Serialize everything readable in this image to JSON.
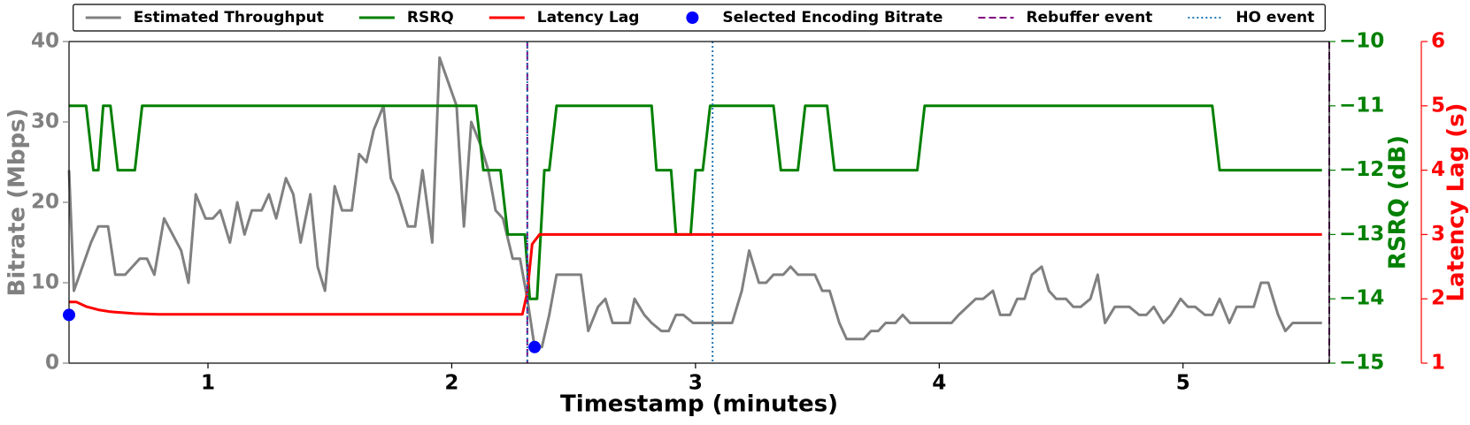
{
  "chart_data": {
    "type": "line",
    "xlabel": "Timestamp (minutes)",
    "ylabel": "Bitrate (Mbps)",
    "y2label": "RSRQ (dB)",
    "y3label": "Latency Lag (s)",
    "xlim": [
      0.43,
      5.6
    ],
    "xticks": [
      1,
      2,
      3,
      4,
      5
    ],
    "ylim": [
      0,
      40
    ],
    "yticks": [
      0,
      10,
      20,
      30,
      40
    ],
    "y2lim": [
      -15,
      -10
    ],
    "y2ticks": [
      {
        "value": -15,
        "label": "−15"
      },
      {
        "value": -14,
        "label": "−14"
      },
      {
        "value": -13,
        "label": "−13"
      },
      {
        "value": -12,
        "label": "−12"
      },
      {
        "value": -11,
        "label": "−11"
      },
      {
        "value": -10,
        "label": "−10"
      }
    ],
    "y3lim": [
      1,
      6
    ],
    "y3ticks": [
      1,
      2,
      3,
      4,
      5,
      6
    ],
    "ycolor": "#808080",
    "y2color": "#008000",
    "y3color": "#ff0000",
    "legend": "top",
    "series": [
      {
        "name": "Estimated Throughput",
        "color": "#808080",
        "style": "line",
        "axis": "y",
        "x": [
          0.43,
          0.45,
          0.52,
          0.55,
          0.59,
          0.62,
          0.66,
          0.72,
          0.75,
          0.78,
          0.82,
          0.89,
          0.92,
          0.95,
          0.99,
          1.02,
          1.05,
          1.09,
          1.12,
          1.15,
          1.18,
          1.22,
          1.25,
          1.28,
          1.32,
          1.35,
          1.38,
          1.42,
          1.45,
          1.48,
          1.52,
          1.55,
          1.59,
          1.62,
          1.65,
          1.68,
          1.72,
          1.75,
          1.78,
          1.82,
          1.85,
          1.88,
          1.92,
          1.95,
          2.02,
          2.05,
          2.08,
          2.12,
          2.15,
          2.18,
          2.21,
          2.25,
          2.28,
          2.31,
          2.34,
          2.37,
          2.4,
          2.43,
          2.53,
          2.56,
          2.6,
          2.63,
          2.66,
          2.73,
          2.75,
          2.79,
          2.82,
          2.86,
          2.89,
          2.92,
          2.95,
          2.99,
          3.15,
          3.19,
          3.22,
          3.26,
          3.29,
          3.32,
          3.36,
          3.39,
          3.42,
          3.49,
          3.52,
          3.55,
          3.59,
          3.62,
          3.69,
          3.72,
          3.75,
          3.78,
          3.82,
          3.85,
          3.88,
          4.05,
          4.08,
          4.15,
          4.18,
          4.22,
          4.25,
          4.29,
          4.32,
          4.35,
          4.38,
          4.42,
          4.45,
          4.48,
          4.52,
          4.55,
          4.58,
          4.62,
          4.65,
          4.68,
          4.72,
          4.78,
          4.82,
          4.85,
          4.88,
          4.92,
          4.95,
          4.99,
          5.02,
          5.05,
          5.09,
          5.12,
          5.15,
          5.19,
          5.22,
          5.29,
          5.32,
          5.35,
          5.39,
          5.42,
          5.45,
          5.52,
          5.57
        ],
        "values": [
          24,
          9,
          15,
          17,
          17,
          11,
          11,
          13,
          13,
          11,
          18,
          14,
          10,
          21,
          18,
          18,
          19,
          15,
          20,
          16,
          19,
          19,
          21,
          18,
          23,
          21,
          15,
          21,
          12,
          9,
          22,
          19,
          19,
          26,
          25,
          29,
          32,
          23,
          21,
          17,
          17,
          24,
          15,
          38,
          32,
          17,
          30,
          27,
          24,
          19,
          18,
          13,
          13,
          8,
          2,
          2,
          6,
          11,
          11,
          4,
          7,
          8,
          5,
          5,
          8,
          6,
          5,
          4,
          4,
          6,
          6,
          5,
          5,
          9,
          14,
          10,
          10,
          11,
          11,
          12,
          11,
          11,
          9,
          9,
          5,
          3,
          3,
          4,
          4,
          5,
          5,
          6,
          5,
          5,
          6,
          8,
          8,
          9,
          6,
          6,
          8,
          8,
          11,
          12,
          9,
          8,
          8,
          7,
          7,
          8,
          11,
          5,
          7,
          7,
          6,
          6,
          7,
          5,
          6,
          8,
          7,
          7,
          6,
          6,
          8,
          5,
          7,
          7,
          10,
          10,
          6,
          4,
          5,
          5,
          5
        ]
      },
      {
        "name": "RSRQ",
        "color": "#008000",
        "style": "line",
        "axis": "y2",
        "x": [
          0.43,
          0.5,
          0.53,
          0.55,
          0.57,
          0.6,
          0.63,
          0.7,
          0.73,
          2.1,
          2.13,
          2.2,
          2.23,
          2.3,
          2.32,
          2.35,
          2.38,
          2.4,
          2.43,
          2.82,
          2.84,
          2.9,
          2.92,
          2.98,
          3.0,
          3.03,
          3.06,
          3.32,
          3.35,
          3.42,
          3.45,
          3.54,
          3.57,
          3.91,
          3.94,
          5.12,
          5.15,
          5.57
        ],
        "values": [
          -11,
          -11,
          -12,
          -12,
          -11,
          -11,
          -12,
          -12,
          -11,
          -11,
          -12,
          -12,
          -13,
          -13,
          -14,
          -14,
          -12,
          -12,
          -11,
          -11,
          -12,
          -12,
          -13,
          -13,
          -12,
          -12,
          -11,
          -11,
          -12,
          -12,
          -11,
          -11,
          -12,
          -12,
          -11,
          -11,
          -12,
          -12
        ]
      },
      {
        "name": "Latency Lag",
        "color": "#ff0000",
        "style": "line",
        "axis": "y3",
        "x": [
          0.43,
          0.46,
          0.5,
          0.55,
          0.6,
          0.7,
          0.8,
          1.0,
          1.5,
          2.0,
          2.29,
          2.31,
          2.33,
          2.36,
          3.0,
          4.0,
          5.0,
          5.57
        ],
        "values": [
          1.95,
          1.95,
          1.88,
          1.83,
          1.8,
          1.77,
          1.76,
          1.76,
          1.76,
          1.76,
          1.76,
          2.1,
          2.85,
          3.0,
          3.0,
          3.0,
          3.0,
          3.0
        ]
      },
      {
        "name": "Selected Encoding Bitrate",
        "color": "#0000ff",
        "style": "scatter",
        "axis": "y",
        "x": [
          0.43,
          2.34
        ],
        "values": [
          6,
          2
        ]
      },
      {
        "name": "Rebuffer event",
        "color": "#800080",
        "style": "vline",
        "dash": "dashed",
        "x": [
          2.31,
          5.6
        ]
      },
      {
        "name": "HO event",
        "color": "#1f77b4",
        "style": "vline",
        "dash": "dotted",
        "x": [
          2.31,
          3.07
        ]
      }
    ]
  }
}
